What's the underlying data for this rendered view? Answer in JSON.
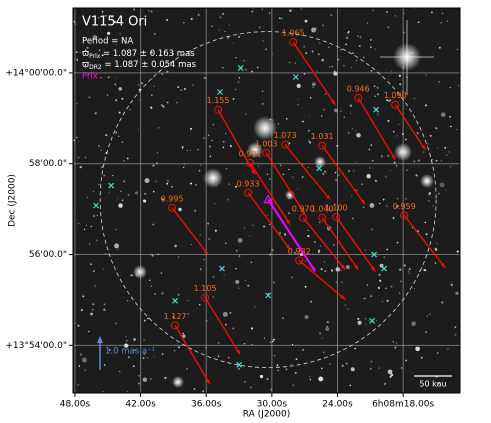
{
  "chart_data": {
    "type": "scatter",
    "title": "V1154 Ori",
    "period": "Period = NA",
    "plx_lines": [
      {
        "symbol": "ϖ",
        "sub": "Prlx",
        "text": " = 1.087 ± 0.163 mas"
      },
      {
        "symbol": "ϖ",
        "sub": "DR2",
        "text": " = 1.087 ± 0.054 mas"
      }
    ],
    "xlabel": "RA (J2000)",
    "ylabel": "Dec (J2000)",
    "xlim": [
      48.18,
      12.8
    ],
    "ylim": [
      52.95,
      61.43
    ],
    "xticks": [
      {
        "value": 48,
        "label": "48.00s"
      },
      {
        "value": 42,
        "label": "42.00s"
      },
      {
        "value": 36,
        "label": "36.00s"
      },
      {
        "value": 30,
        "label": "30.00s"
      },
      {
        "value": 24,
        "label": "24.00s"
      },
      {
        "value": 18,
        "label": "6h08m18.00s"
      }
    ],
    "yticks": [
      {
        "value": 60,
        "label": "+14°00'00.0\""
      },
      {
        "value": 58,
        "label": "58'00.0\""
      },
      {
        "value": 56,
        "label": "56'00.0\""
      },
      {
        "value": 54,
        "label": "+13°54'00.0\""
      }
    ],
    "grid": true,
    "series": [
      {
        "name": "Prlx",
        "color": "#ff00ff",
        "x": [
          30.34
        ],
        "y": [
          57.21
        ],
        "x_end": [
          26.04
        ],
        "y_end": [
          55.63
        ]
      },
      {
        "color": "#ee1100",
        "label_color": "#ff6a1a",
        "x": [
          28.05,
          22.11,
          18.72,
          34.92,
          28.79,
          25.4,
          31.99,
          30.52,
          32.17,
          39.12,
          27.14,
          25.4,
          24.12,
          17.9,
          27.5,
          36.1,
          38.85
        ],
        "y": [
          60.68,
          59.45,
          59.3,
          59.19,
          58.42,
          58.4,
          58.02,
          58.24,
          57.36,
          57.03,
          56.81,
          56.81,
          56.83,
          56.86,
          55.87,
          55.05,
          54.44
        ],
        "x_end": [
          24.21,
          18.72,
          15.97,
          31.53,
          24.67,
          21.47,
          28.33,
          26.96,
          28.33,
          35.83,
          23.3,
          22.11,
          20.55,
          14.15,
          23.3,
          32.9,
          35.65
        ],
        "y_end": [
          59.3,
          58.09,
          58.31,
          57.76,
          57.21,
          57.1,
          56.66,
          56.88,
          56.11,
          56.0,
          55.67,
          55.67,
          55.63,
          55.71,
          55.01,
          53.8,
          53.14
        ],
        "labels": [
          "1.065",
          "0.946",
          "1.090",
          "1.155",
          "1.073",
          "1.031",
          "0.991",
          "1.003",
          "0.933",
          "0.995",
          "0.970",
          "1.040",
          "1.100",
          "0.959",
          "0.982",
          "1.105",
          "1.127"
        ]
      },
      {
        "color": "#40e0d0",
        "x": [
          32.85,
          27.81,
          34.74,
          20.47,
          44.69,
          46.07,
          25.68,
          20.65,
          19.74,
          34.56,
          30.34,
          38.85,
          32.99,
          20.83
        ],
        "y": [
          60.11,
          59.91,
          59.58,
          59.19,
          57.52,
          57.08,
          57.9,
          56.0,
          55.69,
          55.69,
          55.1,
          54.98,
          53.57,
          54.54
        ]
      }
    ],
    "pm_scale_label": "1.0 mas a⁻¹",
    "pm_scale_color": "#5a8fe0",
    "dist_scale_label": "50 kau"
  }
}
